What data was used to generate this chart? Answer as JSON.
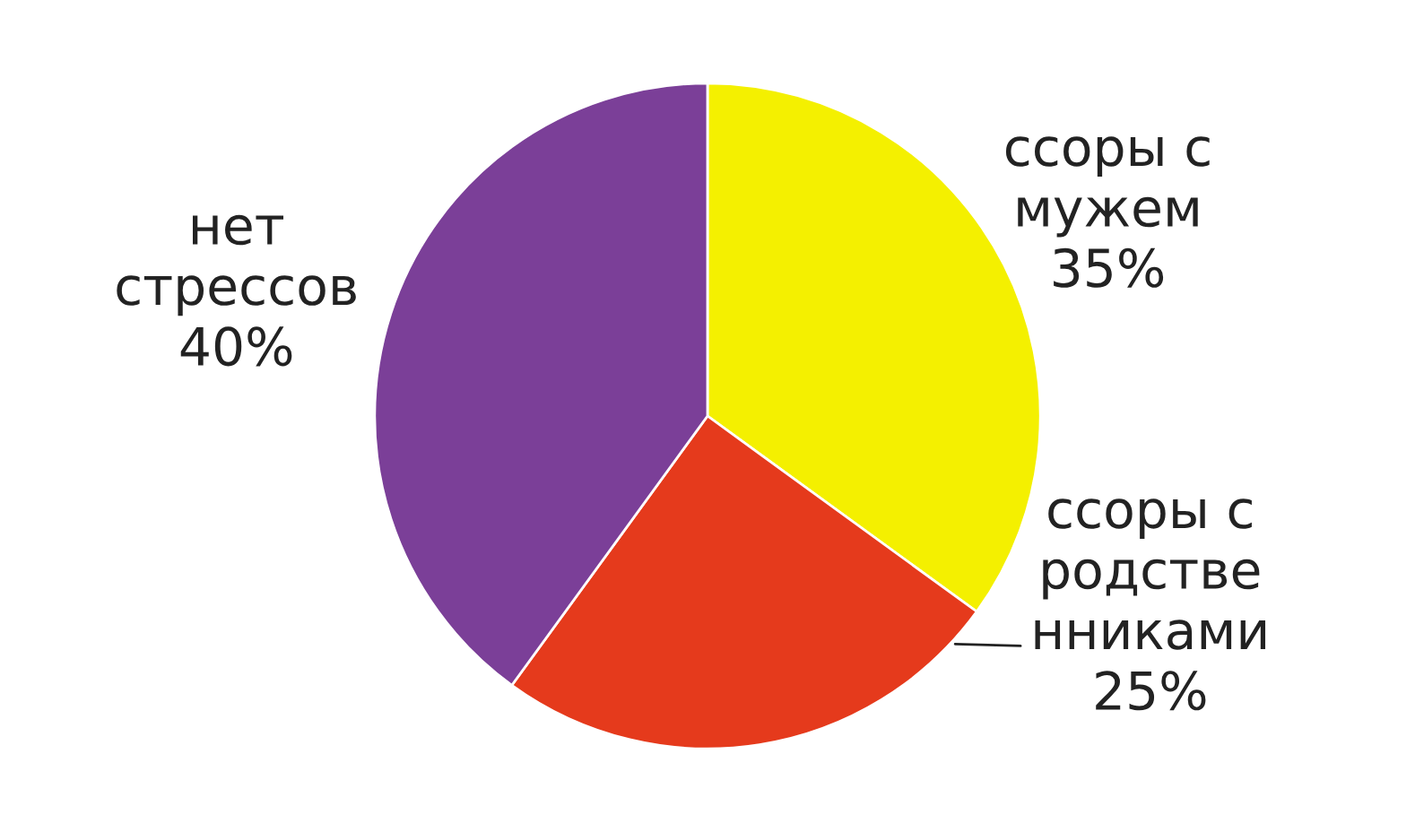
{
  "chart_data": {
    "type": "pie",
    "categories": [
      "ссоры с\nмужем",
      "ссоры с\nродстве\nнниками",
      "нет\nстрессов"
    ],
    "values": [
      35,
      25,
      40
    ],
    "value_labels": [
      "35%",
      "25%",
      "40%"
    ],
    "colors": [
      "#f4f000",
      "#e53a1c",
      "#7b3f98"
    ]
  }
}
